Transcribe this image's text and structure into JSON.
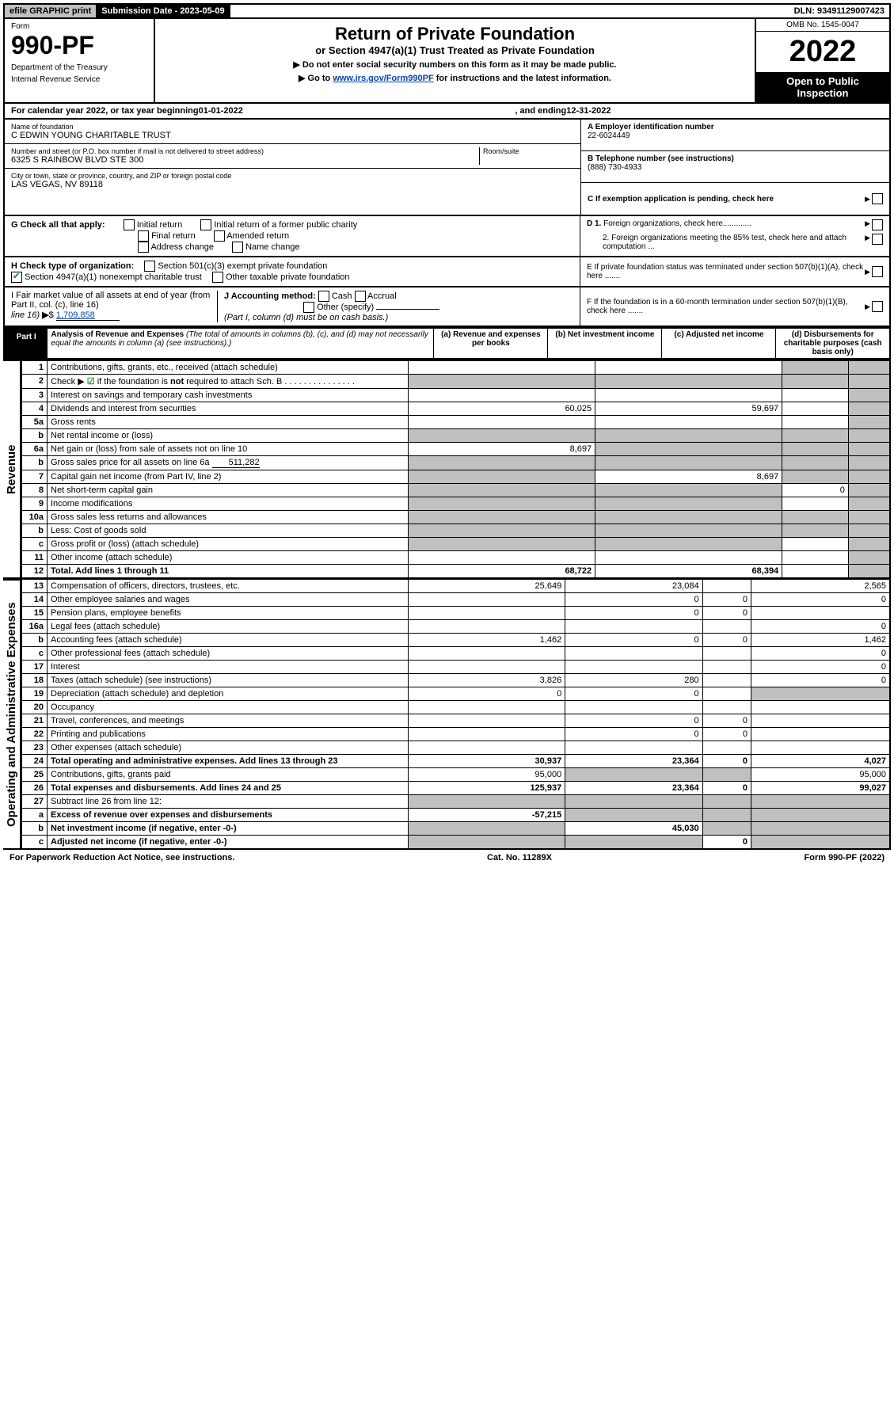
{
  "header": {
    "efile_label": "efile GRAPHIC print",
    "submission_label": "Submission Date - 2023-05-09",
    "dln": "DLN: 93491129007423",
    "form_label": "Form",
    "form_number": "990-PF",
    "dept": "Department of the Treasury",
    "irs": "Internal Revenue Service",
    "title": "Return of Private Foundation",
    "subtitle": "or Section 4947(a)(1) Trust Treated as Private Foundation",
    "note1": "▶ Do not enter social security numbers on this form as it may be made public.",
    "note2_pre": "▶ Go to ",
    "note2_link": "www.irs.gov/Form990PF",
    "note2_post": " for instructions and the latest information.",
    "omb": "OMB No. 1545-0047",
    "year": "2022",
    "inspection": "Open to Public Inspection"
  },
  "caly": {
    "text_pre": "For calendar year 2022, or tax year beginning ",
    "begin": "01-01-2022",
    "mid": " , and ending ",
    "end": "12-31-2022"
  },
  "id": {
    "name_lbl": "Name of foundation",
    "name": "C EDWIN YOUNG CHARITABLE TRUST",
    "addr_lbl": "Number and street (or P.O. box number if mail is not delivered to street address)",
    "addr": "6325 S RAINBOW BLVD STE 300",
    "room_lbl": "Room/suite",
    "city_lbl": "City or town, state or province, country, and ZIP or foreign postal code",
    "city": "LAS VEGAS, NV  89118",
    "ein_lbl": "A Employer identification number",
    "ein": "22-6024449",
    "tel_lbl": "B Telephone number (see instructions)",
    "tel": "(888) 730-4933",
    "c_lbl": "C If exemption application is pending, check here",
    "d1": "D 1. Foreign organizations, check here.............",
    "d2": "2. Foreign organizations meeting the 85% test, check here and attach computation ...",
    "e_lbl": "E  If private foundation status was terminated under section 507(b)(1)(A), check here .......",
    "f_lbl": "F  If the foundation is in a 60-month termination under section 507(b)(1)(B), check here .......",
    "g_lbl": "G Check all that apply:",
    "g_opts": [
      "Initial return",
      "Initial return of a former public charity",
      "Final return",
      "Amended return",
      "Address change",
      "Name change"
    ],
    "h_lbl": "H Check type of organization:",
    "h1": "Section 501(c)(3) exempt private foundation",
    "h2": "Section 4947(a)(1) nonexempt charitable trust",
    "h3": "Other taxable private foundation",
    "i_lbl": "I Fair market value of all assets at end of year (from Part II, col. (c), line 16)",
    "i_val": "1,709,858",
    "j_lbl": "J Accounting method:",
    "j_opts": [
      "Cash",
      "Accrual",
      "Other (specify)"
    ],
    "j_note": "(Part I, column (d) must be on cash basis.)"
  },
  "part1": {
    "label": "Part I",
    "title": "Analysis of Revenue and Expenses",
    "title_note": "(The total of amounts in columns (b), (c), and (d) may not necessarily equal the amounts in column (a) (see instructions).)",
    "cols": {
      "a": "(a) Revenue and expenses per books",
      "b": "(b) Net investment income",
      "c": "(c) Adjusted net income",
      "d": "(d) Disbursements for charitable purposes (cash basis only)"
    }
  },
  "side_labels": {
    "rev": "Revenue",
    "exp": "Operating and Administrative Expenses"
  },
  "rows": [
    {
      "n": "1",
      "d": "Contributions, gifts, grants, etc., received (attach schedule)",
      "a": "",
      "b": "",
      "c": "sh",
      "dcol": "sh"
    },
    {
      "n": "2",
      "d": "Check ▶ ☑ if the foundation is not required to attach Sch. B",
      "a": "sh",
      "b": "sh",
      "c": "sh",
      "dcol": "sh",
      "chk": true
    },
    {
      "n": "3",
      "d": "Interest on savings and temporary cash investments",
      "a": "",
      "b": "",
      "c": "",
      "dcol": "sh"
    },
    {
      "n": "4",
      "d": "Dividends and interest from securities",
      "a": "60,025",
      "b": "59,697",
      "c": "",
      "dcol": "sh"
    },
    {
      "n": "5a",
      "d": "Gross rents",
      "a": "",
      "b": "",
      "c": "",
      "dcol": "sh"
    },
    {
      "n": "b",
      "d": "Net rental income or (loss)",
      "a": "sh",
      "b": "sh",
      "c": "sh",
      "dcol": "sh",
      "inset": true
    },
    {
      "n": "6a",
      "d": "Net gain or (loss) from sale of assets not on line 10",
      "a": "8,697",
      "b": "sh",
      "c": "sh",
      "dcol": "sh"
    },
    {
      "n": "b",
      "d": "Gross sales price for all assets on line 6a",
      "a": "sh",
      "b": "sh",
      "c": "sh",
      "dcol": "sh",
      "inset": true,
      "inline_val": "511,282"
    },
    {
      "n": "7",
      "d": "Capital gain net income (from Part IV, line 2)",
      "a": "sh",
      "b": "8,697",
      "c": "sh",
      "dcol": "sh"
    },
    {
      "n": "8",
      "d": "Net short-term capital gain",
      "a": "sh",
      "b": "sh",
      "c": "0",
      "dcol": "sh"
    },
    {
      "n": "9",
      "d": "Income modifications",
      "a": "sh",
      "b": "sh",
      "c": "",
      "dcol": "sh"
    },
    {
      "n": "10a",
      "d": "Gross sales less returns and allowances",
      "a": "sh",
      "b": "sh",
      "c": "sh",
      "dcol": "sh",
      "inset": true
    },
    {
      "n": "b",
      "d": "Less: Cost of goods sold",
      "a": "sh",
      "b": "sh",
      "c": "sh",
      "dcol": "sh",
      "inset": true
    },
    {
      "n": "c",
      "d": "Gross profit or (loss) (attach schedule)",
      "a": "sh",
      "b": "sh",
      "c": "",
      "dcol": "sh"
    },
    {
      "n": "11",
      "d": "Other income (attach schedule)",
      "a": "",
      "b": "",
      "c": "",
      "dcol": "sh"
    },
    {
      "n": "12",
      "d": "Total. Add lines 1 through 11",
      "a": "68,722",
      "b": "68,394",
      "c": "",
      "dcol": "sh",
      "bold": true
    },
    {
      "n": "13",
      "d": "Compensation of officers, directors, trustees, etc.",
      "a": "25,649",
      "b": "23,084",
      "c": "",
      "dcol": "2,565"
    },
    {
      "n": "14",
      "d": "Other employee salaries and wages",
      "a": "",
      "b": "0",
      "c": "0",
      "dcol": "0"
    },
    {
      "n": "15",
      "d": "Pension plans, employee benefits",
      "a": "",
      "b": "0",
      "c": "0",
      "dcol": ""
    },
    {
      "n": "16a",
      "d": "Legal fees (attach schedule)",
      "a": "",
      "b": "",
      "c": "",
      "dcol": "0"
    },
    {
      "n": "b",
      "d": "Accounting fees (attach schedule)",
      "a": "1,462",
      "b": "0",
      "c": "0",
      "dcol": "1,462"
    },
    {
      "n": "c",
      "d": "Other professional fees (attach schedule)",
      "a": "",
      "b": "",
      "c": "",
      "dcol": "0"
    },
    {
      "n": "17",
      "d": "Interest",
      "a": "",
      "b": "",
      "c": "",
      "dcol": "0"
    },
    {
      "n": "18",
      "d": "Taxes (attach schedule) (see instructions)",
      "a": "3,826",
      "b": "280",
      "c": "",
      "dcol": "0"
    },
    {
      "n": "19",
      "d": "Depreciation (attach schedule) and depletion",
      "a": "0",
      "b": "0",
      "c": "",
      "dcol": "sh"
    },
    {
      "n": "20",
      "d": "Occupancy",
      "a": "",
      "b": "",
      "c": "",
      "dcol": ""
    },
    {
      "n": "21",
      "d": "Travel, conferences, and meetings",
      "a": "",
      "b": "0",
      "c": "0",
      "dcol": ""
    },
    {
      "n": "22",
      "d": "Printing and publications",
      "a": "",
      "b": "0",
      "c": "0",
      "dcol": ""
    },
    {
      "n": "23",
      "d": "Other expenses (attach schedule)",
      "a": "",
      "b": "",
      "c": "",
      "dcol": ""
    },
    {
      "n": "24",
      "d": "Total operating and administrative expenses. Add lines 13 through 23",
      "a": "30,937",
      "b": "23,364",
      "c": "0",
      "dcol": "4,027",
      "bold": true
    },
    {
      "n": "25",
      "d": "Contributions, gifts, grants paid",
      "a": "95,000",
      "b": "sh",
      "c": "sh",
      "dcol": "95,000"
    },
    {
      "n": "26",
      "d": "Total expenses and disbursements. Add lines 24 and 25",
      "a": "125,937",
      "b": "23,364",
      "c": "0",
      "dcol": "99,027",
      "bold": true
    },
    {
      "n": "27",
      "d": "Subtract line 26 from line 12:",
      "a": "sh",
      "b": "sh",
      "c": "sh",
      "dcol": "sh"
    },
    {
      "n": "a",
      "d": "Excess of revenue over expenses and disbursements",
      "a": "-57,215",
      "b": "sh",
      "c": "sh",
      "dcol": "sh",
      "bold": true
    },
    {
      "n": "b",
      "d": "Net investment income (if negative, enter -0-)",
      "a": "sh",
      "b": "45,030",
      "c": "sh",
      "dcol": "sh",
      "bold": true
    },
    {
      "n": "c",
      "d": "Adjusted net income (if negative, enter -0-)",
      "a": "sh",
      "b": "sh",
      "c": "0",
      "dcol": "sh",
      "bold": true
    }
  ],
  "footer": {
    "left": "For Paperwork Reduction Act Notice, see instructions.",
    "mid": "Cat. No. 11289X",
    "right": "Form 990-PF (2022)"
  },
  "colors": {
    "shade": "#c0c0c0",
    "black": "#000000",
    "link": "#0645ad",
    "green": "#2a9d3a"
  }
}
